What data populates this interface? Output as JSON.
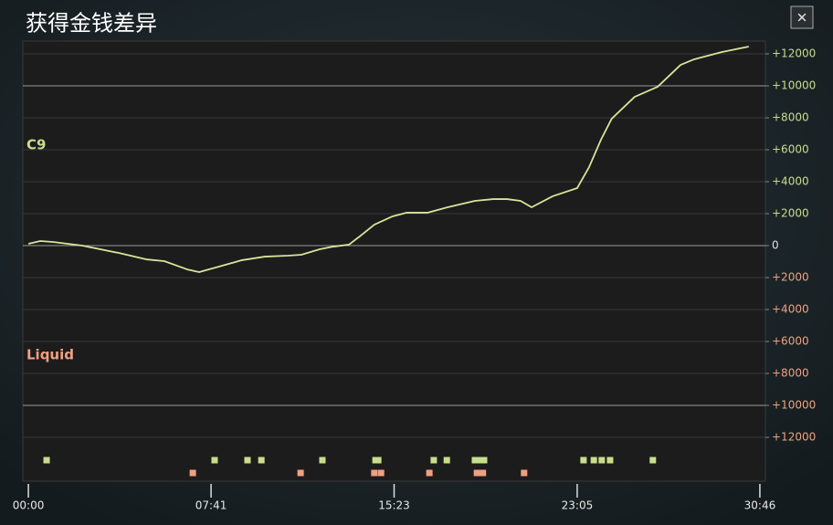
{
  "chart_data": {
    "type": "line",
    "title": "获得金钱差异",
    "close_label": "✕",
    "x": [
      0,
      30,
      62,
      136,
      228,
      297,
      343,
      401,
      431,
      482,
      539,
      597,
      655,
      689,
      735,
      770,
      809,
      839,
      873,
      919,
      954,
      1007,
      1058,
      1127,
      1173,
      1208,
      1242,
      1270,
      1323,
      1385,
      1415,
      1445,
      1472,
      1530,
      1588,
      1646,
      1680,
      1749,
      1818
    ],
    "values": [
      115,
      285,
      230,
      0,
      -460,
      -860,
      -970,
      -1490,
      -1660,
      -1310,
      -910,
      -690,
      -630,
      -570,
      -230,
      -60,
      60,
      630,
      1310,
      1830,
      2060,
      2060,
      2400,
      2800,
      2910,
      2910,
      2800,
      2400,
      3090,
      3600,
      4910,
      6630,
      7940,
      9310,
      9940,
      11310,
      11660,
      12110,
      12460
    ],
    "color": "#d6e59a",
    "teams": [
      {
        "name": "C9",
        "color": "#c9dd8c",
        "event_times": [
          46,
          470,
          553,
          588,
          742,
          876,
          883,
          1023,
          1056,
          1127,
          1141,
          1150,
          1401,
          1427,
          1447,
          1468,
          1576
        ]
      },
      {
        "name": "Liquid",
        "color": "#f0a080",
        "event_times": [
          415,
          687,
          873,
          890,
          1012,
          1132,
          1147,
          1251
        ]
      }
    ],
    "xlim": [
      -14,
      1860
    ],
    "xticks": [
      {
        "value": 0,
        "label": "00:00"
      },
      {
        "value": 461,
        "label": "07:41"
      },
      {
        "value": 923,
        "label": "15:23"
      },
      {
        "value": 1385,
        "label": "23:05"
      },
      {
        "value": 1846,
        "label": "30:46"
      }
    ],
    "ylim": [
      -12800,
      12800
    ],
    "yticks": [
      {
        "value": 12000,
        "label": "+12000"
      },
      {
        "value": 10000,
        "label": "+10000"
      },
      {
        "value": 8000,
        "label": "+8000"
      },
      {
        "value": 6000,
        "label": "+6000"
      },
      {
        "value": 4000,
        "label": "+4000"
      },
      {
        "value": 2000,
        "label": "+2000"
      },
      0,
      {
        "value": -2000,
        "label": "+2000"
      },
      {
        "value": -4000,
        "label": "+4000"
      },
      {
        "value": -6000,
        "label": "+6000"
      },
      {
        "value": -8000,
        "label": "+8000"
      },
      {
        "value": -10000,
        "label": "+10000"
      },
      {
        "value": -12000,
        "label": "+12000"
      }
    ],
    "grid": true
  }
}
